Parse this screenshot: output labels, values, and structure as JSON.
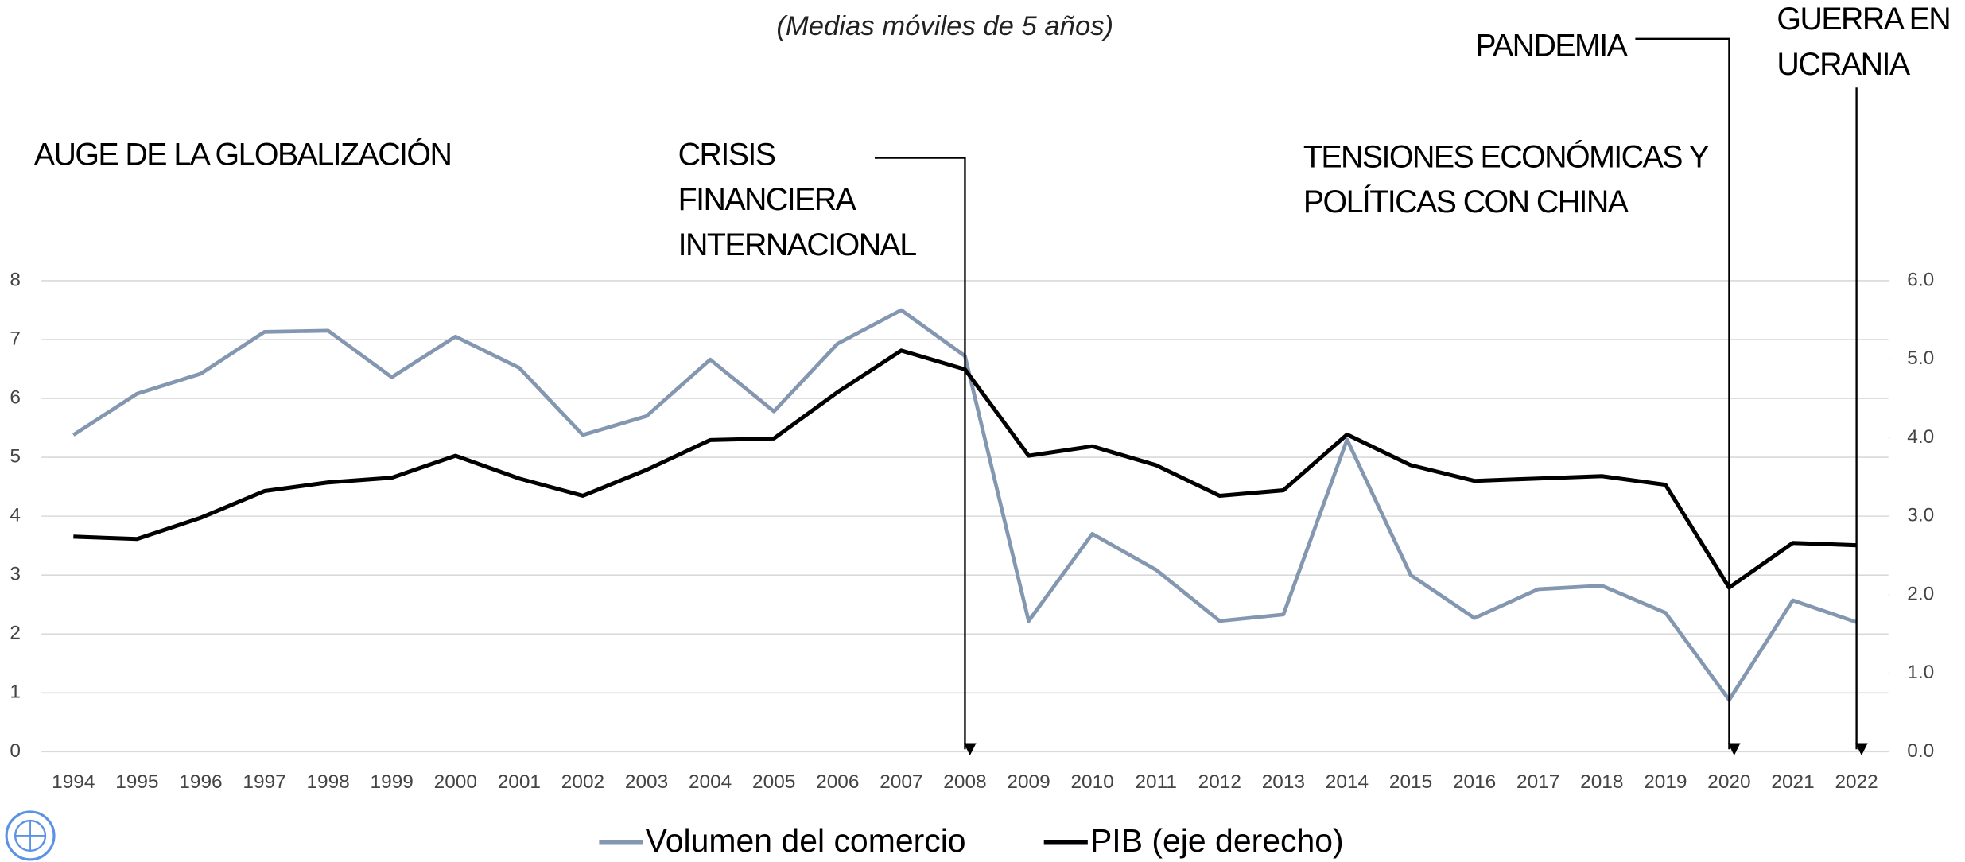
{
  "chart_data": {
    "type": "line",
    "subtitle": "(Medias móviles de 5 años)",
    "categories": [
      "1994",
      "1995",
      "1996",
      "1997",
      "1998",
      "1999",
      "2000",
      "2001",
      "2002",
      "2003",
      "2004",
      "2005",
      "2006",
      "2007",
      "2008",
      "2009",
      "2010",
      "2011",
      "2012",
      "2013",
      "2014",
      "2015",
      "2016",
      "2017",
      "2018",
      "2019",
      "2020",
      "2021",
      "2022"
    ],
    "series": [
      {
        "name": "Volumen del comercio",
        "color": "#8497b0",
        "values": [
          5.38,
          6.08,
          6.42,
          7.13,
          7.15,
          6.36,
          7.05,
          6.52,
          5.38,
          5.7,
          6.66,
          5.78,
          6.93,
          7.5,
          6.72,
          2.22,
          3.7,
          3.09,
          2.22,
          2.33,
          5.3,
          3.0,
          2.27,
          2.76,
          2.82,
          2.36,
          0.88,
          2.57,
          2.2
        ]
      },
      {
        "name": "PIB (eje derecho)",
        "color": "#000000",
        "axis": "y2",
        "values": [
          2.74,
          2.71,
          2.98,
          3.32,
          3.43,
          3.49,
          3.77,
          3.48,
          3.26,
          3.59,
          3.97,
          3.99,
          4.58,
          5.11,
          4.87,
          3.77,
          3.89,
          3.65,
          3.26,
          3.33,
          4.04,
          3.65,
          3.45,
          3.48,
          3.51,
          3.4,
          2.09,
          2.66,
          2.63
        ]
      }
    ],
    "ylim": [
      0,
      8
    ],
    "yticks": [
      0,
      1,
      2,
      3,
      4,
      5,
      6,
      7,
      8
    ],
    "y2lim": [
      0,
      6
    ],
    "y2ticks": [
      {
        "value": 0,
        "label": "0.0"
      },
      {
        "value": 1,
        "label": "1.0"
      },
      {
        "value": 2,
        "label": "2.0"
      },
      {
        "value": 3,
        "label": "3.0"
      },
      {
        "value": 4,
        "label": "4.0"
      },
      {
        "value": 5,
        "label": "5.0"
      },
      {
        "value": 6,
        "label": "6.0"
      }
    ],
    "grid": true,
    "legend": "bottom",
    "annotations": [
      {
        "lines": [
          "AUGE DE LA GLOBALIZACIÓN"
        ]
      },
      {
        "lines": [
          "CRISIS",
          "FINANCIERA",
          "INTERNACIONAL"
        ],
        "at": "2008"
      },
      {
        "lines": [
          "TENSIONES ECONÓMICAS Y",
          "POLÍTICAS CON CHINA"
        ]
      },
      {
        "lines": [
          "PANDEMIA"
        ],
        "at": "2020"
      },
      {
        "lines": [
          "GUERRA EN",
          "UCRANIA"
        ],
        "at": "2022"
      }
    ]
  }
}
